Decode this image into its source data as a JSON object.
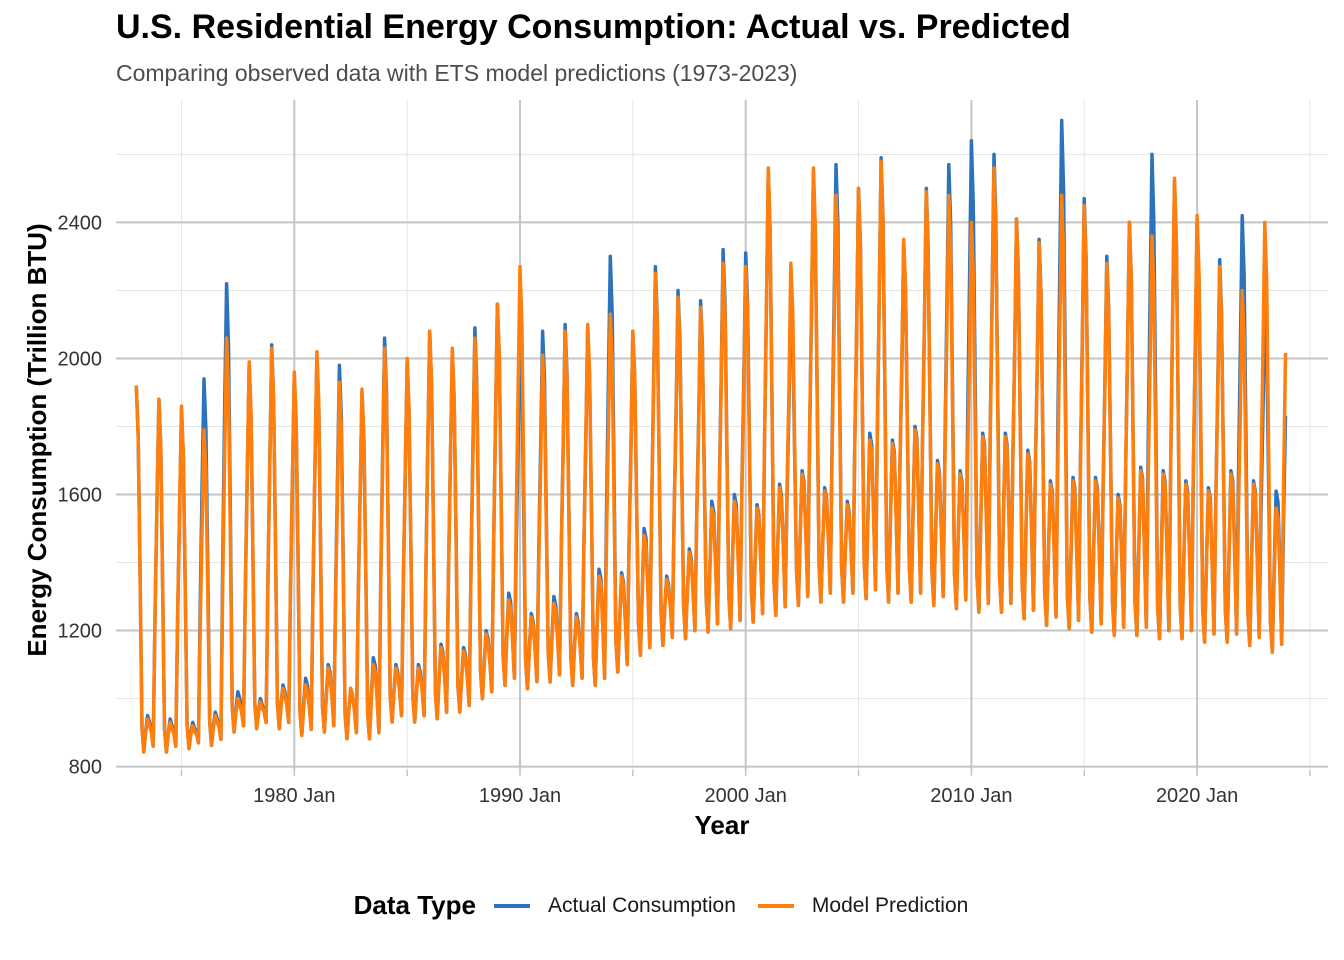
{
  "chart_data": {
    "type": "line",
    "title": "U.S. Residential Energy Consumption: Actual vs. Predicted",
    "subtitle": "Comparing observed data with ETS model predictions (1973-2023)",
    "xlabel": "Year",
    "ylabel": "Energy Consumption (Trillion BTU)",
    "x_range": [
      "1973-01",
      "2023-12"
    ],
    "xlim": [
      1972.1,
      2025.8
    ],
    "ylim": [
      790,
      2760
    ],
    "x_ticks": [
      {
        "value": 1980,
        "label": "1980 Jan"
      },
      {
        "value": 1990,
        "label": "1990 Jan"
      },
      {
        "value": 2000,
        "label": "2000 Jan"
      },
      {
        "value": 2010,
        "label": "2010 Jan"
      },
      {
        "value": 2020,
        "label": "2020 Jan"
      }
    ],
    "y_ticks": [
      {
        "value": 800,
        "label": "800"
      },
      {
        "value": 1200,
        "label": "1200"
      },
      {
        "value": 1600,
        "label": "1600"
      },
      {
        "value": 2000,
        "label": "2000"
      },
      {
        "value": 2400,
        "label": "2400"
      }
    ],
    "grid": true,
    "legend": {
      "title": "Data Type",
      "position": "bottom"
    },
    "series": [
      {
        "name": "Actual Consumption",
        "color": "#2c73bb"
      },
      {
        "name": "Model Prediction",
        "color": "#ff7f0e"
      }
    ],
    "annual_peaks": {
      "years": [
        1973,
        1974,
        1975,
        1976,
        1977,
        1978,
        1979,
        1980,
        1981,
        1982,
        1983,
        1984,
        1985,
        1986,
        1987,
        1988,
        1989,
        1990,
        1991,
        1992,
        1993,
        1994,
        1995,
        1996,
        1997,
        1998,
        1999,
        2000,
        2001,
        2002,
        2003,
        2004,
        2005,
        2006,
        2007,
        2008,
        2009,
        2010,
        2011,
        2012,
        2013,
        2014,
        2015,
        2016,
        2017,
        2018,
        2019,
        2020,
        2021,
        2022,
        2023
      ],
      "actual": [
        1920,
        1880,
        1850,
        1940,
        2220,
        1980,
        2040,
        1950,
        2010,
        1980,
        1900,
        2060,
        1990,
        2080,
        2020,
        2090,
        2160,
        2080,
        2080,
        2100,
        2090,
        2300,
        2080,
        2270,
        2200,
        2170,
        2320,
        2310,
        2550,
        2220,
        2540,
        2570,
        2500,
        2590,
        2340,
        2500,
        2570,
        2640,
        2600,
        2410,
        2350,
        2700,
        2470,
        2300,
        2400,
        2600,
        2520,
        2400,
        2290,
        2420,
        2180
      ],
      "predicted": [
        1920,
        1880,
        1860,
        1790,
        2060,
        1990,
        2030,
        1960,
        2020,
        1930,
        1910,
        2030,
        2000,
        2080,
        2030,
        2060,
        2160,
        2270,
        2010,
        2080,
        2100,
        2130,
        2080,
        2250,
        2180,
        2150,
        2280,
        2270,
        2560,
        2280,
        2560,
        2480,
        2500,
        2580,
        2350,
        2490,
        2480,
        2400,
        2560,
        2410,
        2340,
        2480,
        2450,
        2280,
        2400,
        2360,
        2530,
        2420,
        2270,
        2200,
        2400
      ],
      "summer_peaks_actual": [
        950,
        940,
        930,
        960,
        1020,
        1000,
        1040,
        1060,
        1100,
        1030,
        1120,
        1100,
        1100,
        1160,
        1150,
        1200,
        1310,
        1250,
        1300,
        1250,
        1380,
        1370,
        1500,
        1360,
        1440,
        1580,
        1600,
        1570,
        1630,
        1670,
        1620,
        1580,
        1780,
        1760,
        1800,
        1700,
        1670,
        1780,
        1780,
        1730,
        1640,
        1650,
        1650,
        1600,
        1680,
        1670,
        1640,
        1620,
        1670,
        1640,
        1610
      ],
      "summer_peaks_predicted": [
        940,
        930,
        920,
        950,
        1000,
        990,
        1030,
        1040,
        1090,
        1030,
        1100,
        1090,
        1090,
        1150,
        1140,
        1190,
        1290,
        1240,
        1280,
        1240,
        1360,
        1360,
        1480,
        1350,
        1430,
        1560,
        1580,
        1560,
        1620,
        1660,
        1610,
        1570,
        1760,
        1750,
        1790,
        1690,
        1660,
        1770,
        1770,
        1720,
        1630,
        1640,
        1640,
        1590,
        1670,
        1660,
        1630,
        1610,
        1660,
        1630,
        1560
      ],
      "troughs": [
        860,
        860,
        870,
        880,
        920,
        930,
        930,
        910,
        920,
        900,
        900,
        950,
        950,
        960,
        980,
        1020,
        1060,
        1050,
        1070,
        1060,
        1060,
        1100,
        1150,
        1180,
        1200,
        1220,
        1230,
        1250,
        1270,
        1300,
        1310,
        1310,
        1320,
        1310,
        1310,
        1300,
        1290,
        1280,
        1280,
        1260,
        1240,
        1230,
        1220,
        1210,
        1210,
        1200,
        1200,
        1190,
        1190,
        1180,
        1160
      ]
    }
  }
}
